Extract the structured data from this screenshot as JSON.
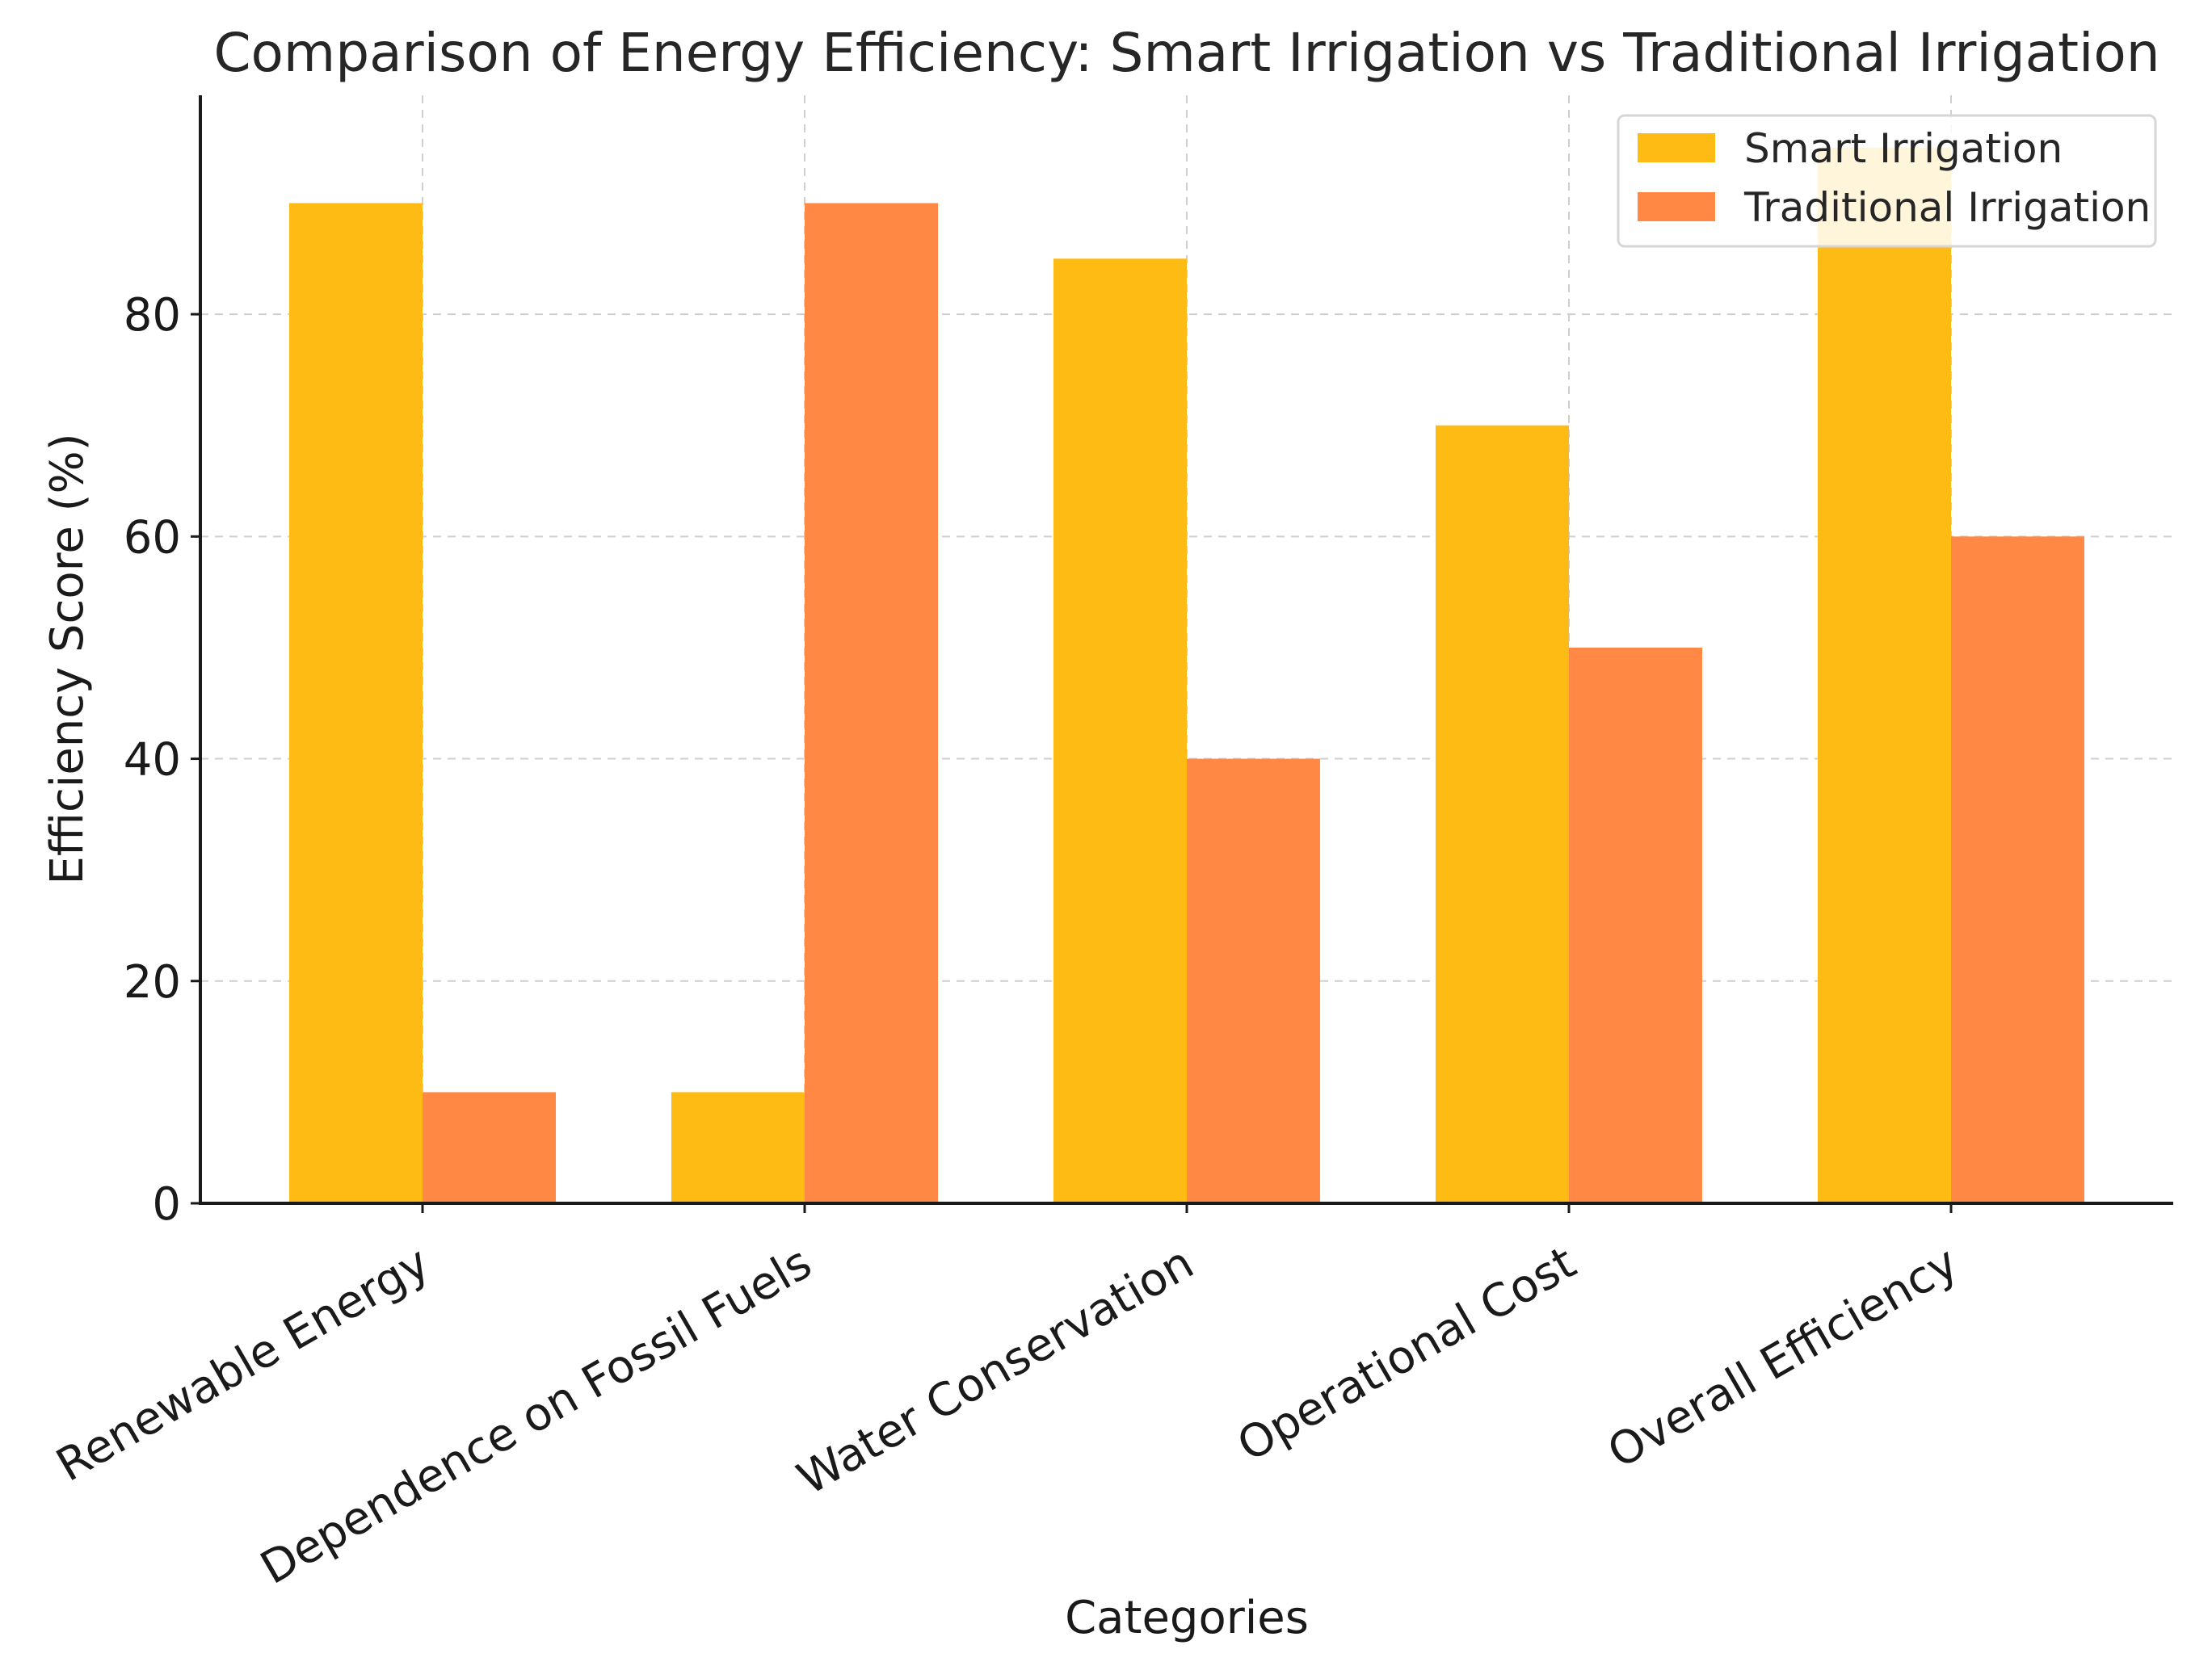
{
  "chart_data": {
    "type": "bar",
    "title": "Comparison of Energy Efficiency: Smart Irrigation vs Traditional Irrigation",
    "xlabel": "Categories",
    "ylabel": "Efficiency Score (%)",
    "ylim": [
      0,
      100
    ],
    "yticks": [
      0,
      20,
      40,
      60,
      80
    ],
    "grid": true,
    "legend_position": "top-right",
    "categories": [
      "Renewable Energy",
      "Dependence on Fossil Fuels",
      "Water Conservation",
      "Operational Cost",
      "Overall Efficiency"
    ],
    "series": [
      {
        "name": "Smart Irrigation",
        "color": "#FDBB13",
        "values": [
          90,
          10,
          85,
          70,
          95
        ]
      },
      {
        "name": "Traditional Irrigation",
        "color": "#FF8845",
        "values": [
          10,
          90,
          40,
          50,
          60
        ]
      }
    ]
  }
}
